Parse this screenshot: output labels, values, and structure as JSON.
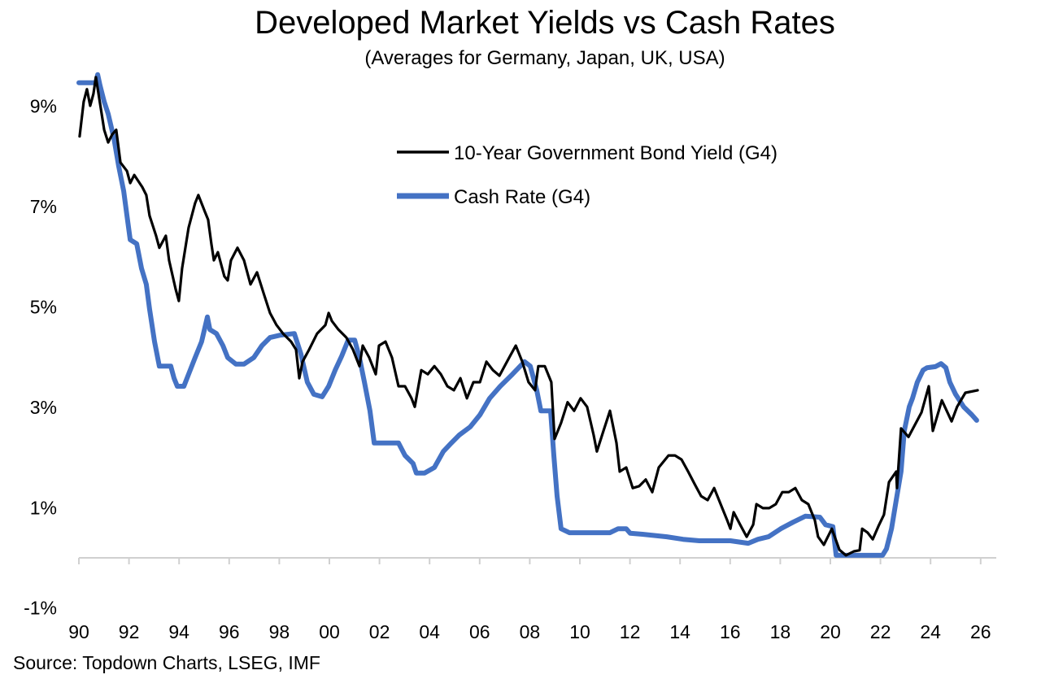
{
  "chart_data": {
    "type": "line",
    "title": "Developed Market Yields vs Cash Rates",
    "subtitle": "(Averages for Germany, Japan, UK, USA)",
    "source": "Source: Topdown Charts, LSEG, IMF",
    "xlabel": "",
    "ylabel": "",
    "xlim": [
      1990,
      2026
    ],
    "ylim": [
      -1,
      10
    ],
    "x_ticks": [
      "90",
      "92",
      "94",
      "96",
      "98",
      "00",
      "02",
      "04",
      "06",
      "08",
      "10",
      "12",
      "14",
      "16",
      "18",
      "20",
      "22",
      "24",
      "26"
    ],
    "y_ticks": [
      {
        "value": 9,
        "label": "9%"
      },
      {
        "value": 7,
        "label": "7%"
      },
      {
        "value": 5,
        "label": "5%"
      },
      {
        "value": 3,
        "label": "3%"
      },
      {
        "value": 1,
        "label": "1%"
      },
      {
        "value": -1,
        "label": "-1%"
      }
    ],
    "grid": false,
    "legend_position": "top-right",
    "series": [
      {
        "name": "10-Year Government Bond Yield (G4)",
        "color": "#000000",
        "points": [
          [
            1990.03,
            8.4
          ],
          [
            1990.19,
            9.09
          ],
          [
            1990.32,
            9.34
          ],
          [
            1990.45,
            9.01
          ],
          [
            1990.58,
            9.25
          ],
          [
            1990.68,
            9.58
          ],
          [
            1990.81,
            9.17
          ],
          [
            1991.01,
            8.53
          ],
          [
            1991.17,
            8.28
          ],
          [
            1991.33,
            8.44
          ],
          [
            1991.49,
            8.53
          ],
          [
            1991.66,
            7.88
          ],
          [
            1991.92,
            7.71
          ],
          [
            1992.05,
            7.47
          ],
          [
            1992.21,
            7.63
          ],
          [
            1992.53,
            7.39
          ],
          [
            1992.69,
            7.23
          ],
          [
            1992.82,
            6.82
          ],
          [
            1993.08,
            6.42
          ],
          [
            1993.21,
            6.18
          ],
          [
            1993.47,
            6.42
          ],
          [
            1993.6,
            5.93
          ],
          [
            1993.86,
            5.36
          ],
          [
            1993.99,
            5.12
          ],
          [
            1994.12,
            5.77
          ],
          [
            1994.38,
            6.58
          ],
          [
            1994.64,
            7.07
          ],
          [
            1994.77,
            7.23
          ],
          [
            1995.03,
            6.9
          ],
          [
            1995.16,
            6.74
          ],
          [
            1995.29,
            6.26
          ],
          [
            1995.39,
            5.93
          ],
          [
            1995.55,
            6.09
          ],
          [
            1995.81,
            5.61
          ],
          [
            1995.94,
            5.53
          ],
          [
            1996.07,
            5.93
          ],
          [
            1996.33,
            6.18
          ],
          [
            1996.59,
            5.93
          ],
          [
            1996.85,
            5.45
          ],
          [
            1997.11,
            5.69
          ],
          [
            1997.37,
            5.28
          ],
          [
            1997.63,
            4.88
          ],
          [
            1997.89,
            4.64
          ],
          [
            1998.15,
            4.47
          ],
          [
            1998.47,
            4.31
          ],
          [
            1998.67,
            4.15
          ],
          [
            1998.8,
            3.58
          ],
          [
            1998.93,
            3.91
          ],
          [
            1999.19,
            4.15
          ],
          [
            1999.51,
            4.47
          ],
          [
            1999.84,
            4.64
          ],
          [
            1999.97,
            4.88
          ],
          [
            2000.1,
            4.72
          ],
          [
            2000.36,
            4.55
          ],
          [
            2000.68,
            4.39
          ],
          [
            2000.94,
            4.15
          ],
          [
            2001.2,
            3.82
          ],
          [
            2001.33,
            4.23
          ],
          [
            2001.59,
            3.99
          ],
          [
            2001.85,
            3.66
          ],
          [
            2001.98,
            4.23
          ],
          [
            2002.24,
            4.31
          ],
          [
            2002.5,
            3.99
          ],
          [
            2002.76,
            3.42
          ],
          [
            2003.02,
            3.42
          ],
          [
            2003.28,
            3.18
          ],
          [
            2003.41,
            3.01
          ],
          [
            2003.67,
            3.74
          ],
          [
            2003.93,
            3.66
          ],
          [
            2004.19,
            3.82
          ],
          [
            2004.45,
            3.66
          ],
          [
            2004.71,
            3.42
          ],
          [
            2004.97,
            3.34
          ],
          [
            2005.23,
            3.58
          ],
          [
            2005.49,
            3.18
          ],
          [
            2005.75,
            3.5
          ],
          [
            2006.01,
            3.5
          ],
          [
            2006.27,
            3.91
          ],
          [
            2006.53,
            3.74
          ],
          [
            2006.79,
            3.63
          ],
          [
            2007.18,
            3.99
          ],
          [
            2007.44,
            4.23
          ],
          [
            2007.7,
            3.91
          ],
          [
            2007.95,
            3.5
          ],
          [
            2008.21,
            3.34
          ],
          [
            2008.34,
            3.82
          ],
          [
            2008.6,
            3.82
          ],
          [
            2008.86,
            3.5
          ],
          [
            2008.99,
            2.37
          ],
          [
            2009.25,
            2.69
          ],
          [
            2009.51,
            3.1
          ],
          [
            2009.77,
            2.93
          ],
          [
            2010.03,
            3.18
          ],
          [
            2010.29,
            3.01
          ],
          [
            2010.55,
            2.45
          ],
          [
            2010.68,
            2.12
          ],
          [
            2010.94,
            2.53
          ],
          [
            2011.2,
            2.93
          ],
          [
            2011.46,
            2.29
          ],
          [
            2011.59,
            1.72
          ],
          [
            2011.85,
            1.8
          ],
          [
            2012.11,
            1.39
          ],
          [
            2012.37,
            1.43
          ],
          [
            2012.63,
            1.56
          ],
          [
            2012.89,
            1.31
          ],
          [
            2013.15,
            1.8
          ],
          [
            2013.54,
            2.04
          ],
          [
            2013.8,
            2.04
          ],
          [
            2014.06,
            1.96
          ],
          [
            2014.32,
            1.72
          ],
          [
            2014.58,
            1.47
          ],
          [
            2014.84,
            1.23
          ],
          [
            2015.1,
            1.15
          ],
          [
            2015.36,
            1.39
          ],
          [
            2015.62,
            1.07
          ],
          [
            2015.88,
            0.75
          ],
          [
            2016.01,
            0.58
          ],
          [
            2016.14,
            0.91
          ],
          [
            2016.4,
            0.66
          ],
          [
            2016.66,
            0.42
          ],
          [
            2016.92,
            0.66
          ],
          [
            2017.05,
            1.07
          ],
          [
            2017.31,
            0.99
          ],
          [
            2017.56,
            0.99
          ],
          [
            2017.82,
            1.07
          ],
          [
            2018.08,
            1.31
          ],
          [
            2018.34,
            1.31
          ],
          [
            2018.6,
            1.39
          ],
          [
            2018.86,
            1.15
          ],
          [
            2019.12,
            1.07
          ],
          [
            2019.38,
            0.75
          ],
          [
            2019.51,
            0.42
          ],
          [
            2019.74,
            0.26
          ],
          [
            2020.06,
            0.58
          ],
          [
            2020.36,
            0.16
          ],
          [
            2020.62,
            0.05
          ],
          [
            2020.94,
            0.13
          ],
          [
            2021.17,
            0.15
          ],
          [
            2021.27,
            0.58
          ],
          [
            2021.49,
            0.5
          ],
          [
            2021.69,
            0.37
          ],
          [
            2021.92,
            0.63
          ],
          [
            2022.14,
            0.86
          ],
          [
            2022.34,
            1.51
          ],
          [
            2022.63,
            1.72
          ],
          [
            2022.66,
            1.39
          ],
          [
            2022.82,
            2.58
          ],
          [
            2023.12,
            2.41
          ],
          [
            2023.64,
            2.9
          ],
          [
            2023.93,
            3.42
          ],
          [
            2024.09,
            2.53
          ],
          [
            2024.45,
            3.14
          ],
          [
            2024.84,
            2.72
          ],
          [
            2025.06,
            3.01
          ],
          [
            2025.39,
            3.29
          ],
          [
            2025.88,
            3.34
          ]
        ]
      },
      {
        "name": "Cash Rate (G4)",
        "color": "#4472C4",
        "points": [
          [
            1990.0,
            9.47
          ],
          [
            1990.68,
            9.47
          ],
          [
            1990.75,
            9.63
          ],
          [
            1990.84,
            9.42
          ],
          [
            1991.01,
            9.09
          ],
          [
            1991.17,
            8.85
          ],
          [
            1991.4,
            8.36
          ],
          [
            1991.59,
            7.8
          ],
          [
            1991.79,
            7.31
          ],
          [
            1991.92,
            6.82
          ],
          [
            1992.05,
            6.34
          ],
          [
            1992.31,
            6.26
          ],
          [
            1992.5,
            5.77
          ],
          [
            1992.69,
            5.45
          ],
          [
            1992.82,
            4.96
          ],
          [
            1993.02,
            4.31
          ],
          [
            1993.21,
            3.82
          ],
          [
            1993.67,
            3.82
          ],
          [
            1993.8,
            3.58
          ],
          [
            1993.93,
            3.42
          ],
          [
            1994.19,
            3.42
          ],
          [
            1994.38,
            3.66
          ],
          [
            1994.64,
            3.99
          ],
          [
            1994.9,
            4.31
          ],
          [
            1995.13,
            4.8
          ],
          [
            1995.23,
            4.55
          ],
          [
            1995.49,
            4.47
          ],
          [
            1995.75,
            4.23
          ],
          [
            1995.94,
            3.99
          ],
          [
            1996.27,
            3.86
          ],
          [
            1996.59,
            3.86
          ],
          [
            1996.98,
            3.99
          ],
          [
            1997.31,
            4.23
          ],
          [
            1997.63,
            4.39
          ],
          [
            1998.05,
            4.44
          ],
          [
            1998.6,
            4.47
          ],
          [
            1998.86,
            4.07
          ],
          [
            1999.12,
            3.5
          ],
          [
            1999.38,
            3.26
          ],
          [
            1999.71,
            3.21
          ],
          [
            1999.97,
            3.42
          ],
          [
            2000.23,
            3.74
          ],
          [
            2000.49,
            4.02
          ],
          [
            2000.75,
            4.34
          ],
          [
            2001.01,
            4.34
          ],
          [
            2001.2,
            3.99
          ],
          [
            2001.4,
            3.5
          ],
          [
            2001.62,
            2.93
          ],
          [
            2001.79,
            2.29
          ],
          [
            2002.76,
            2.29
          ],
          [
            2003.02,
            2.04
          ],
          [
            2003.34,
            1.88
          ],
          [
            2003.47,
            1.69
          ],
          [
            2003.8,
            1.69
          ],
          [
            2004.19,
            1.8
          ],
          [
            2004.55,
            2.12
          ],
          [
            2004.87,
            2.29
          ],
          [
            2005.19,
            2.45
          ],
          [
            2005.62,
            2.61
          ],
          [
            2006.01,
            2.85
          ],
          [
            2006.4,
            3.18
          ],
          [
            2006.82,
            3.42
          ],
          [
            2007.31,
            3.66
          ],
          [
            2007.79,
            3.91
          ],
          [
            2008.02,
            3.82
          ],
          [
            2008.28,
            3.34
          ],
          [
            2008.44,
            2.93
          ],
          [
            2008.83,
            2.93
          ],
          [
            2008.96,
            2.04
          ],
          [
            2009.09,
            1.23
          ],
          [
            2009.25,
            0.58
          ],
          [
            2009.58,
            0.5
          ],
          [
            2011.2,
            0.5
          ],
          [
            2011.53,
            0.58
          ],
          [
            2011.85,
            0.58
          ],
          [
            2012.01,
            0.49
          ],
          [
            2012.5,
            0.47
          ],
          [
            2013.47,
            0.42
          ],
          [
            2014.12,
            0.37
          ],
          [
            2014.77,
            0.34
          ],
          [
            2016.01,
            0.34
          ],
          [
            2016.72,
            0.29
          ],
          [
            2017.11,
            0.37
          ],
          [
            2017.53,
            0.42
          ],
          [
            2018.02,
            0.58
          ],
          [
            2018.51,
            0.71
          ],
          [
            2019.0,
            0.83
          ],
          [
            2019.58,
            0.81
          ],
          [
            2019.81,
            0.66
          ],
          [
            2020.1,
            0.62
          ],
          [
            2020.23,
            0.05
          ],
          [
            2022.08,
            0.05
          ],
          [
            2022.24,
            0.18
          ],
          [
            2022.44,
            0.58
          ],
          [
            2022.63,
            1.15
          ],
          [
            2022.82,
            1.72
          ],
          [
            2022.95,
            2.53
          ],
          [
            2023.15,
            3.01
          ],
          [
            2023.28,
            3.18
          ],
          [
            2023.47,
            3.5
          ],
          [
            2023.7,
            3.74
          ],
          [
            2023.86,
            3.79
          ],
          [
            2024.19,
            3.81
          ],
          [
            2024.42,
            3.87
          ],
          [
            2024.61,
            3.79
          ],
          [
            2024.77,
            3.5
          ],
          [
            2025.0,
            3.26
          ],
          [
            2025.32,
            3.01
          ],
          [
            2025.65,
            2.85
          ],
          [
            2025.84,
            2.74
          ]
        ]
      }
    ]
  }
}
